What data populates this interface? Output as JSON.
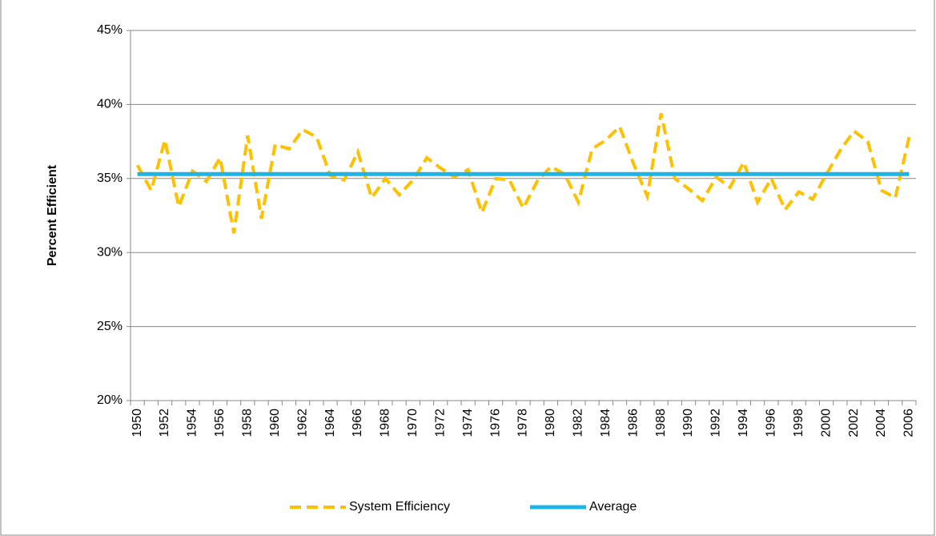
{
  "chart_data": {
    "type": "line",
    "y_label": "Percent Efficient",
    "categories": [
      "1950",
      null,
      "1952",
      null,
      "1954",
      null,
      "1956",
      null,
      "1958",
      null,
      "1960",
      null,
      "1962",
      null,
      "1964",
      null,
      "1966",
      null,
      "1968",
      null,
      "1970",
      null,
      "1972",
      null,
      "1974",
      null,
      "1976",
      null,
      "1978",
      null,
      "1980",
      null,
      "1982",
      null,
      "1984",
      null,
      "1986",
      null,
      "1988",
      null,
      "1990",
      null,
      "1992",
      null,
      "1994",
      null,
      "1996",
      null,
      "1998",
      null,
      "2000",
      null,
      "2002",
      null,
      "2004",
      null,
      "2006"
    ],
    "series": [
      {
        "name": "System Efficiency",
        "color": "#ffc000",
        "dashed": true,
        "values": [
          35.9,
          34.2,
          37.6,
          33.1,
          35.5,
          34.8,
          36.4,
          31.3,
          37.9,
          32.3,
          37.3,
          37.0,
          38.3,
          37.8,
          35.2,
          34.9,
          36.8,
          33.7,
          35.0,
          33.9,
          34.9,
          36.4,
          35.7,
          35.1,
          35.6,
          32.7,
          35.0,
          34.9,
          33.0,
          34.8,
          35.8,
          35.3,
          33.4,
          37.0,
          37.6,
          38.5,
          36.0,
          33.8,
          39.4,
          35.0,
          34.3,
          33.5,
          35.1,
          34.4,
          36.1,
          33.4,
          35.0,
          32.9,
          34.1,
          33.6,
          35.3,
          36.9,
          38.2,
          37.5,
          34.2,
          33.7,
          37.8
        ]
      },
      {
        "name": "Average",
        "color": "#1fb4e6",
        "dashed": false,
        "values": [
          35.3,
          35.3,
          35.3,
          35.3,
          35.3,
          35.3,
          35.3,
          35.3,
          35.3,
          35.3,
          35.3,
          35.3,
          35.3,
          35.3,
          35.3,
          35.3,
          35.3,
          35.3,
          35.3,
          35.3,
          35.3,
          35.3,
          35.3,
          35.3,
          35.3,
          35.3,
          35.3,
          35.3,
          35.3,
          35.3,
          35.3,
          35.3,
          35.3,
          35.3,
          35.3,
          35.3,
          35.3,
          35.3,
          35.3,
          35.3,
          35.3,
          35.3,
          35.3,
          35.3,
          35.3,
          35.3,
          35.3,
          35.3,
          35.3,
          35.3,
          35.3,
          35.3,
          35.3,
          35.3,
          35.3,
          35.3,
          35.3
        ]
      }
    ],
    "ylim": [
      20,
      45
    ],
    "yticks": [
      {
        "value": 20,
        "label": "20%"
      },
      {
        "value": 25,
        "label": "25%"
      },
      {
        "value": 30,
        "label": "30%"
      },
      {
        "value": 35,
        "label": "35%"
      },
      {
        "value": 40,
        "label": "40%"
      },
      {
        "value": 45,
        "label": "45%"
      }
    ],
    "grid": true,
    "legend": "bottom"
  }
}
